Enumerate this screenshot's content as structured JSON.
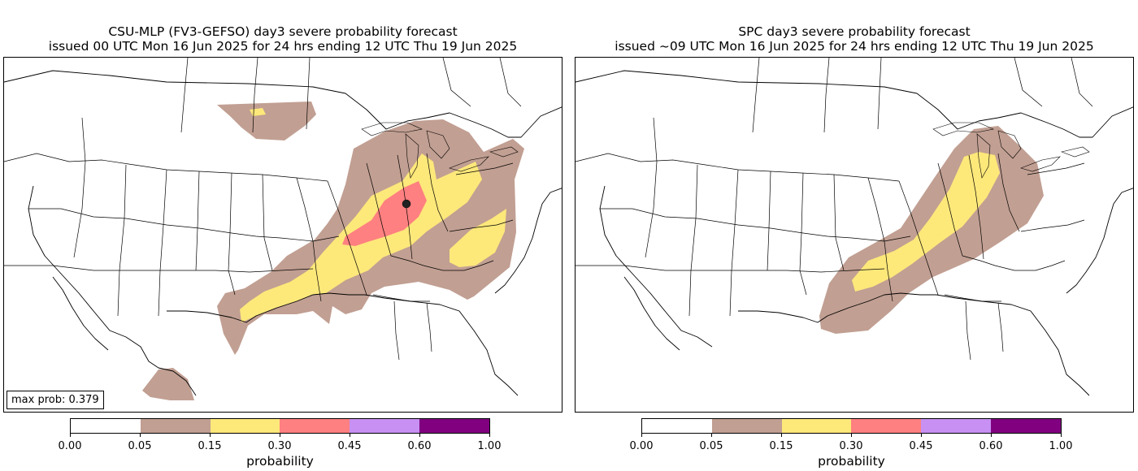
{
  "left_panel": {
    "title_line1": "CSU-MLP (FV3-GEFSO) day3 severe probability forecast",
    "title_line2": "issued 00 UTC Mon 16 Jun 2025 for 24 hrs ending 12 UTC Thu 19 Jun 2025",
    "max_prob_label": "max prob: 0.379",
    "colorbar_label": "probability"
  },
  "right_panel": {
    "title_line1": "SPC day3 severe probability forecast",
    "title_line2": "issued ~09 UTC Mon 16 Jun 2025 for 24 hrs ending 12 UTC Thu 19 Jun 2025",
    "colorbar_label": "probability"
  },
  "colorbar": {
    "ticks": [
      "0.00",
      "0.05",
      "0.15",
      "0.30",
      "0.45",
      "0.60",
      "1.00"
    ],
    "colors": [
      "#ffffff",
      "#c19f92",
      "#fde87a",
      "#ff8080",
      "#c790f2",
      "#800080"
    ]
  },
  "legend_colors": {
    "prob_05": "#c19f92",
    "prob_15": "#fde87a",
    "prob_30": "#ff8080",
    "max_marker": "#222222"
  }
}
